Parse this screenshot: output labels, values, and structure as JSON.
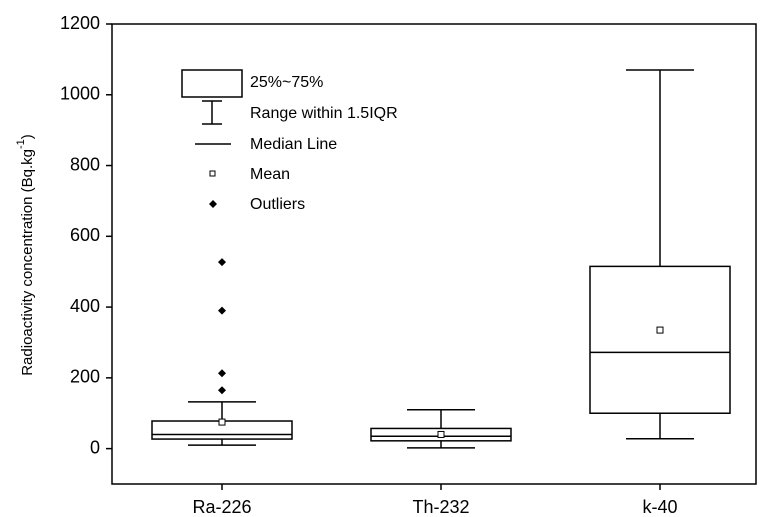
{
  "chart_data": {
    "type": "box",
    "ylabel": "Radioactivity concentration (Bq.kg",
    "ylabel_sup": "-1",
    "ylabel_end": ")",
    "categories": [
      "Ra-226",
      "Th-232",
      "k-40"
    ],
    "boxes": [
      {
        "whislo": 10,
        "q1": 27,
        "med": 40,
        "q3": 78,
        "whishi": 132,
        "mean": 75,
        "fliers": [
          165,
          213,
          390,
          527
        ]
      },
      {
        "whislo": 2,
        "q1": 22,
        "med": 35,
        "q3": 57,
        "whishi": 110,
        "mean": 40,
        "fliers": []
      },
      {
        "whislo": 28,
        "q1": 100,
        "med": 272,
        "q3": 515,
        "whishi": 1070,
        "mean": 335,
        "fliers": []
      }
    ],
    "color": "#000000",
    "ylim": [
      -100,
      1200
    ],
    "yticks": [
      0,
      200,
      400,
      600,
      800,
      1000,
      1200
    ],
    "legend": {
      "box": "25%~75%",
      "whisker": "Range within 1.5IQR",
      "median": "Median Line",
      "mean": "Mean",
      "outliers": "Outliers"
    }
  }
}
